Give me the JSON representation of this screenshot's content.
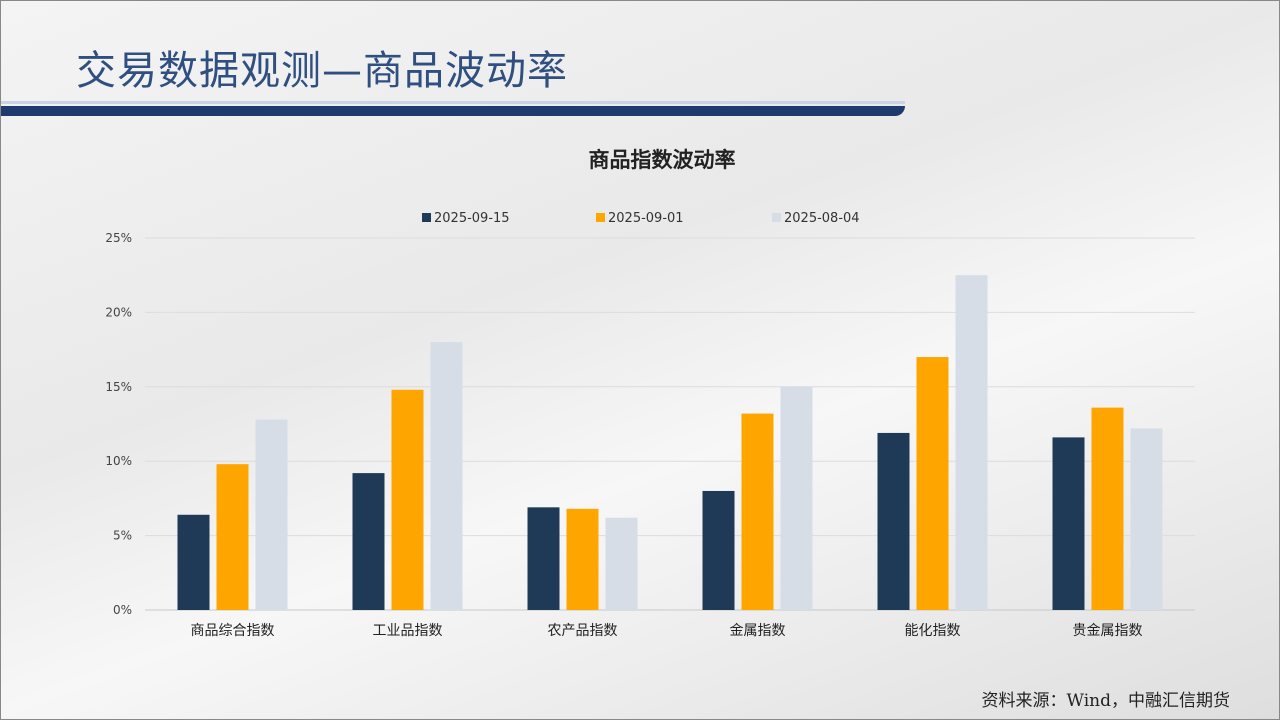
{
  "page": {
    "title": "交易数据观测—商品波动率",
    "source": "资料来源：Wind，中融汇信期货"
  },
  "chart_data": {
    "type": "bar",
    "title": "商品指数波动率",
    "categories": [
      "商品综合指数",
      "工业品指数",
      "农产品指数",
      "金属指数",
      "能化指数",
      "贵金属指数"
    ],
    "series": [
      {
        "name": "2025-09-15",
        "color": "#1f3a57",
        "values": [
          6.4,
          9.2,
          6.9,
          8.0,
          11.9,
          11.6
        ]
      },
      {
        "name": "2025-09-01",
        "color": "#ffa500",
        "values": [
          9.8,
          14.8,
          6.8,
          13.2,
          17.0,
          13.6
        ]
      },
      {
        "name": "2025-08-04",
        "color": "#d6dde6",
        "values": [
          12.8,
          18.0,
          6.2,
          15.0,
          22.5,
          12.2
        ]
      }
    ],
    "yticks": [
      "0%",
      "5%",
      "10%",
      "15%",
      "20%",
      "25%"
    ],
    "ylim": [
      0,
      25
    ],
    "unit": "%",
    "grid": true,
    "legend": "top"
  }
}
